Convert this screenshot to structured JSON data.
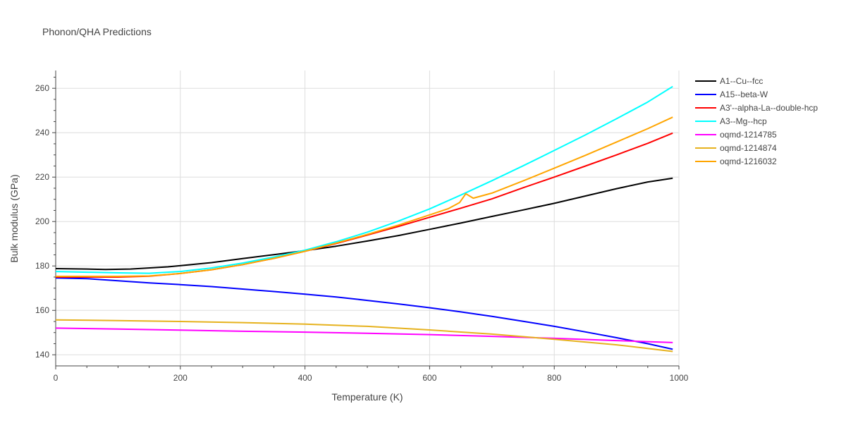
{
  "chart_data": {
    "type": "line",
    "title": "Phonon/QHA Predictions",
    "xlabel": "Temperature (K)",
    "ylabel": "Bulk modulus (GPa)",
    "xlim": [
      0,
      1000
    ],
    "ylim": [
      135,
      268
    ],
    "xticks": [
      0,
      200,
      400,
      600,
      800,
      1000
    ],
    "yticks": [
      140,
      160,
      180,
      200,
      220,
      240,
      260
    ],
    "grid": true,
    "legend_position": "right",
    "series": [
      {
        "name": "A1--Cu--fcc",
        "color": "#000000",
        "x": [
          0,
          50,
          80,
          120,
          180,
          250,
          300,
          350,
          400,
          450,
          500,
          550,
          600,
          650,
          700,
          750,
          800,
          850,
          900,
          950,
          990
        ],
        "y": [
          178.8,
          178.6,
          178.4,
          178.6,
          179.6,
          181.5,
          183.3,
          185.1,
          186.9,
          188.9,
          191.2,
          193.7,
          196.5,
          199.3,
          202.3,
          205.2,
          208.2,
          211.5,
          214.8,
          217.8,
          219.5
        ]
      },
      {
        "name": "A15--beta-W",
        "color": "#0000ff",
        "x": [
          0,
          50,
          100,
          150,
          200,
          250,
          300,
          350,
          400,
          450,
          500,
          550,
          600,
          650,
          700,
          750,
          800,
          850,
          900,
          950,
          990
        ],
        "y": [
          174.6,
          174.3,
          173.3,
          172.4,
          171.6,
          170.7,
          169.6,
          168.5,
          167.3,
          166.0,
          164.5,
          162.9,
          161.2,
          159.3,
          157.3,
          155.1,
          152.8,
          150.3,
          147.7,
          145.0,
          142.5
        ]
      },
      {
        "name": "A3'--alpha-La--double-hcp",
        "color": "#ff0000",
        "x": [
          0,
          50,
          100,
          150,
          200,
          250,
          300,
          350,
          400,
          450,
          500,
          550,
          600,
          650,
          700,
          750,
          800,
          850,
          900,
          950,
          990
        ],
        "y": [
          175.0,
          175.0,
          175.0,
          175.4,
          176.6,
          178.3,
          180.6,
          183.4,
          186.6,
          190.1,
          193.9,
          197.8,
          201.9,
          206.0,
          210.2,
          215.2,
          220.0,
          225.0,
          230.0,
          235.2,
          239.8
        ]
      },
      {
        "name": "A3--Mg--hcp",
        "color": "#00ffff",
        "x": [
          0,
          50,
          100,
          150,
          200,
          250,
          300,
          350,
          400,
          450,
          500,
          550,
          600,
          650,
          700,
          750,
          800,
          850,
          900,
          950,
          990
        ],
        "y": [
          177.5,
          177.2,
          176.9,
          176.7,
          177.5,
          179.1,
          181.3,
          184.0,
          187.1,
          190.9,
          195.2,
          200.2,
          205.7,
          211.9,
          218.4,
          225.1,
          232.0,
          239.0,
          246.3,
          253.8,
          260.8
        ]
      },
      {
        "name": "oqmd-1214785",
        "color": "#ff00ff",
        "x": [
          0,
          100,
          200,
          300,
          400,
          500,
          600,
          700,
          800,
          900,
          990
        ],
        "y": [
          152.0,
          151.6,
          151.1,
          150.6,
          150.2,
          149.7,
          149.1,
          148.3,
          147.4,
          146.4,
          145.5
        ]
      },
      {
        "name": "oqmd-1214874",
        "color": "#e6b21e",
        "x": [
          0,
          100,
          200,
          300,
          400,
          500,
          600,
          700,
          800,
          900,
          990
        ],
        "y": [
          155.7,
          155.4,
          155.0,
          154.5,
          153.8,
          152.8,
          151.2,
          149.3,
          147.0,
          144.5,
          141.5
        ]
      },
      {
        "name": "oqmd-1216032",
        "color": "#ffa500",
        "x": [
          0,
          50,
          100,
          150,
          200,
          250,
          300,
          350,
          400,
          450,
          500,
          550,
          600,
          630,
          648,
          658,
          670,
          700,
          750,
          800,
          850,
          900,
          950,
          990
        ],
        "y": [
          175.3,
          175.3,
          175.3,
          175.5,
          176.6,
          178.3,
          180.6,
          183.4,
          186.6,
          190.3,
          194.2,
          198.4,
          203.0,
          205.8,
          208.5,
          212.5,
          210.5,
          212.8,
          218.3,
          224.0,
          229.8,
          235.8,
          241.8,
          247.0
        ]
      }
    ]
  }
}
